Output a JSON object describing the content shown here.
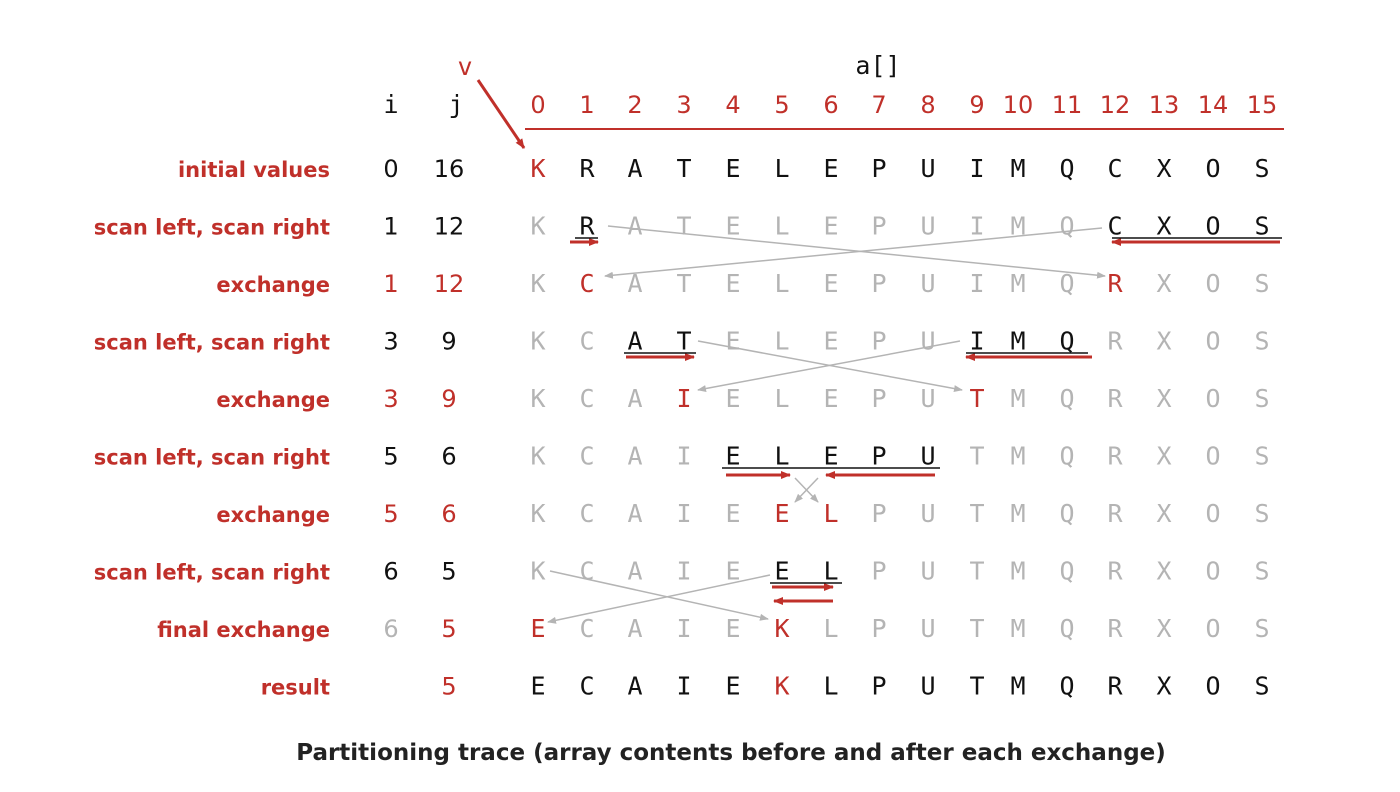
{
  "colors": {
    "red": "#c0302a",
    "black": "#111111",
    "gray": "#b4b4b4"
  },
  "header": {
    "v_label": "v",
    "array_label": "a[]",
    "i_label": "i",
    "j_label": "j",
    "indices": [
      "0",
      "1",
      "2",
      "3",
      "4",
      "5",
      "6",
      "7",
      "8",
      "9",
      "10",
      "11",
      "12",
      "13",
      "14",
      "15"
    ]
  },
  "rows": [
    {
      "label": "initial values",
      "label_style": "red",
      "i": "0",
      "j": "16",
      "ij_style": "black",
      "chars": [
        "K",
        "R",
        "A",
        "T",
        "E",
        "L",
        "E",
        "P",
        "U",
        "I",
        "M",
        "Q",
        "C",
        "X",
        "O",
        "S"
      ],
      "styles": [
        "r",
        "b",
        "b",
        "b",
        "b",
        "b",
        "b",
        "b",
        "b",
        "b",
        "b",
        "b",
        "b",
        "b",
        "b",
        "b"
      ]
    },
    {
      "label": "scan left, scan right",
      "label_style": "red",
      "i": "1",
      "j": "12",
      "ij_style": "black",
      "chars": [
        "K",
        "R",
        "A",
        "T",
        "E",
        "L",
        "E",
        "P",
        "U",
        "I",
        "M",
        "Q",
        "C",
        "X",
        "O",
        "S"
      ],
      "styles": [
        "g",
        "b",
        "g",
        "g",
        "g",
        "g",
        "g",
        "g",
        "g",
        "g",
        "g",
        "g",
        "b",
        "b",
        "b",
        "b"
      ]
    },
    {
      "label": "exchange",
      "label_style": "red",
      "i": "1",
      "j": "12",
      "ij_style": "red",
      "chars": [
        "K",
        "C",
        "A",
        "T",
        "E",
        "L",
        "E",
        "P",
        "U",
        "I",
        "M",
        "Q",
        "R",
        "X",
        "O",
        "S"
      ],
      "styles": [
        "g",
        "r",
        "g",
        "g",
        "g",
        "g",
        "g",
        "g",
        "g",
        "g",
        "g",
        "g",
        "r",
        "g",
        "g",
        "g"
      ]
    },
    {
      "label": "scan left, scan right",
      "label_style": "red",
      "i": "3",
      "j": "9",
      "ij_style": "black",
      "chars": [
        "K",
        "C",
        "A",
        "T",
        "E",
        "L",
        "E",
        "P",
        "U",
        "I",
        "M",
        "Q",
        "R",
        "X",
        "O",
        "S"
      ],
      "styles": [
        "g",
        "g",
        "b",
        "b",
        "g",
        "g",
        "g",
        "g",
        "g",
        "b",
        "b",
        "b",
        "g",
        "g",
        "g",
        "g"
      ]
    },
    {
      "label": "exchange",
      "label_style": "red",
      "i": "3",
      "j": "9",
      "ij_style": "red",
      "chars": [
        "K",
        "C",
        "A",
        "I",
        "E",
        "L",
        "E",
        "P",
        "U",
        "T",
        "M",
        "Q",
        "R",
        "X",
        "O",
        "S"
      ],
      "styles": [
        "g",
        "g",
        "g",
        "r",
        "g",
        "g",
        "g",
        "g",
        "g",
        "r",
        "g",
        "g",
        "g",
        "g",
        "g",
        "g"
      ]
    },
    {
      "label": "scan left, scan right",
      "label_style": "red",
      "i": "5",
      "j": "6",
      "ij_style": "black",
      "chars": [
        "K",
        "C",
        "A",
        "I",
        "E",
        "L",
        "E",
        "P",
        "U",
        "T",
        "M",
        "Q",
        "R",
        "X",
        "O",
        "S"
      ],
      "styles": [
        "g",
        "g",
        "g",
        "g",
        "b",
        "b",
        "b",
        "b",
        "b",
        "g",
        "g",
        "g",
        "g",
        "g",
        "g",
        "g"
      ]
    },
    {
      "label": "exchange",
      "label_style": "red",
      "i": "5",
      "j": "6",
      "ij_style": "red",
      "chars": [
        "K",
        "C",
        "A",
        "I",
        "E",
        "E",
        "L",
        "P",
        "U",
        "T",
        "M",
        "Q",
        "R",
        "X",
        "O",
        "S"
      ],
      "styles": [
        "g",
        "g",
        "g",
        "g",
        "g",
        "r",
        "r",
        "g",
        "g",
        "g",
        "g",
        "g",
        "g",
        "g",
        "g",
        "g"
      ]
    },
    {
      "label": "scan left, scan right",
      "label_style": "red",
      "i": "6",
      "j": "5",
      "ij_style": "black",
      "chars": [
        "K",
        "C",
        "A",
        "I",
        "E",
        "E",
        "L",
        "P",
        "U",
        "T",
        "M",
        "Q",
        "R",
        "X",
        "O",
        "S"
      ],
      "styles": [
        "g",
        "g",
        "g",
        "g",
        "g",
        "b",
        "b",
        "g",
        "g",
        "g",
        "g",
        "g",
        "g",
        "g",
        "g",
        "g"
      ]
    },
    {
      "label": "final exchange",
      "label_style": "red",
      "i": "6",
      "j": "5",
      "ij_style": "grayred",
      "chars": [
        "E",
        "C",
        "A",
        "I",
        "E",
        "K",
        "L",
        "P",
        "U",
        "T",
        "M",
        "Q",
        "R",
        "X",
        "O",
        "S"
      ],
      "styles": [
        "r",
        "g",
        "g",
        "g",
        "g",
        "r",
        "g",
        "g",
        "g",
        "g",
        "g",
        "g",
        "g",
        "g",
        "g",
        "g"
      ]
    },
    {
      "label": "result",
      "label_style": "red",
      "i": "",
      "j": "5",
      "ij_style": "red",
      "chars": [
        "E",
        "C",
        "A",
        "I",
        "E",
        "K",
        "L",
        "P",
        "U",
        "T",
        "M",
        "Q",
        "R",
        "X",
        "O",
        "S"
      ],
      "styles": [
        "b",
        "b",
        "b",
        "b",
        "b",
        "r",
        "b",
        "b",
        "b",
        "b",
        "b",
        "b",
        "b",
        "b",
        "b",
        "b"
      ]
    }
  ],
  "caption": "Partitioning trace (array contents before and after each exchange)"
}
